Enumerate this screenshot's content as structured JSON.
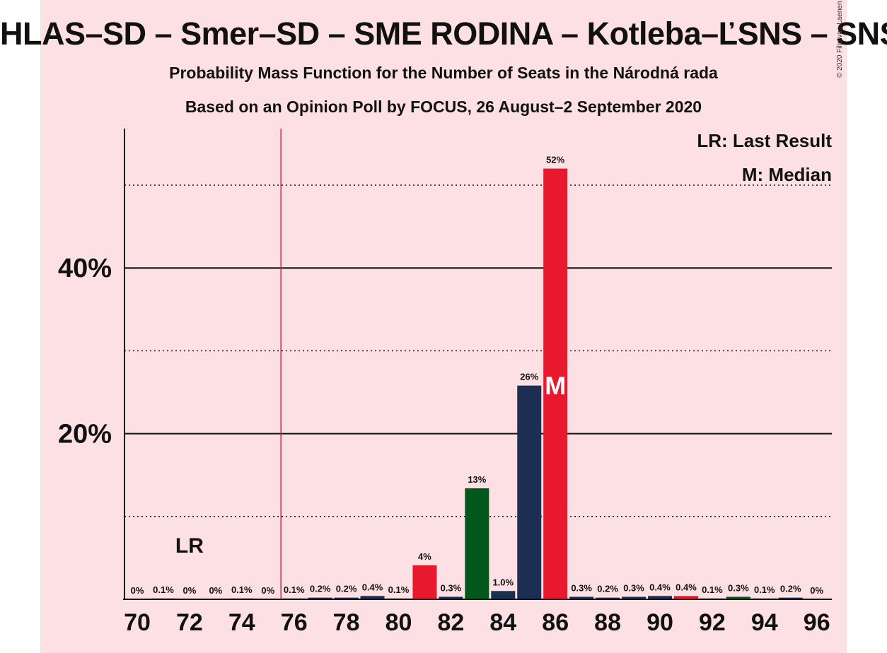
{
  "header": {
    "title": "HLAS–SD – Smer–SD – SME RODINA – Kotleba–ĽSNS – SNS",
    "subtitle": "Probability Mass Function for the Number of Seats in the Národná rada",
    "source": "Based on an Opinion Poll by FOCUS, 26 August–2 September 2020",
    "copyright": "© 2020 Filip van Laenen"
  },
  "legend": {
    "last_result": "LR: Last Result",
    "median": "M: Median"
  },
  "colors": {
    "background": "#fce0e3",
    "navy": "#1c2e52",
    "red": "#e8192f",
    "green": "#03571a",
    "majority_line": "#e8192f"
  },
  "chart_data": {
    "type": "bar",
    "x_min": 70,
    "x_max": 96,
    "x_ticks": [
      "70",
      "72",
      "74",
      "76",
      "78",
      "80",
      "82",
      "84",
      "86",
      "88",
      "90",
      "92",
      "94",
      "96"
    ],
    "y_range": [
      0,
      57
    ],
    "y_ticks": [
      {
        "value": 10,
        "label": "",
        "style": "dotted"
      },
      {
        "value": 20,
        "label": "20%",
        "style": "solid"
      },
      {
        "value": 30,
        "label": "",
        "style": "dotted"
      },
      {
        "value": 40,
        "label": "40%",
        "style": "solid"
      },
      {
        "value": 50,
        "label": "",
        "style": "dotted"
      }
    ],
    "majority_line_seats": 75.5,
    "last_result": {
      "seats": 72,
      "label": "LR"
    },
    "median": {
      "seats": 86,
      "label": "M"
    },
    "bars": [
      {
        "seats": 70,
        "value": 0,
        "label": "0%",
        "color": "navy"
      },
      {
        "seats": 71,
        "value": 0.1,
        "label": "0.1%",
        "color": "navy"
      },
      {
        "seats": 72,
        "value": 0,
        "label": "0%",
        "color": "navy"
      },
      {
        "seats": 73,
        "value": 0,
        "label": "0%",
        "color": "navy"
      },
      {
        "seats": 74,
        "value": 0.1,
        "label": "0.1%",
        "color": "navy"
      },
      {
        "seats": 75,
        "value": 0,
        "label": "0%",
        "color": "navy"
      },
      {
        "seats": 76,
        "value": 0.1,
        "label": "0.1%",
        "color": "navy"
      },
      {
        "seats": 77,
        "value": 0.2,
        "label": "0.2%",
        "color": "navy"
      },
      {
        "seats": 78,
        "value": 0.2,
        "label": "0.2%",
        "color": "navy"
      },
      {
        "seats": 79,
        "value": 0.4,
        "label": "0.4%",
        "color": "navy"
      },
      {
        "seats": 80,
        "value": 0.1,
        "label": "0.1%",
        "color": "navy"
      },
      {
        "seats": 81,
        "value": 4.1,
        "label": "4%",
        "color": "red"
      },
      {
        "seats": 82,
        "value": 0.3,
        "label": "0.3%",
        "color": "navy"
      },
      {
        "seats": 83,
        "value": 13.4,
        "label": "13%",
        "color": "green"
      },
      {
        "seats": 84,
        "value": 1.0,
        "label": "1.0%",
        "color": "navy"
      },
      {
        "seats": 85,
        "value": 25.8,
        "label": "26%",
        "color": "navy"
      },
      {
        "seats": 86,
        "value": 52.0,
        "label": "52%",
        "color": "red"
      },
      {
        "seats": 87,
        "value": 0.3,
        "label": "0.3%",
        "color": "navy"
      },
      {
        "seats": 88,
        "value": 0.2,
        "label": "0.2%",
        "color": "navy"
      },
      {
        "seats": 89,
        "value": 0.3,
        "label": "0.3%",
        "color": "navy"
      },
      {
        "seats": 90,
        "value": 0.4,
        "label": "0.4%",
        "color": "navy"
      },
      {
        "seats": 91,
        "value": 0.4,
        "label": "0.4%",
        "color": "red"
      },
      {
        "seats": 92,
        "value": 0.1,
        "label": "0.1%",
        "color": "navy"
      },
      {
        "seats": 93,
        "value": 0.3,
        "label": "0.3%",
        "color": "green"
      },
      {
        "seats": 94,
        "value": 0.1,
        "label": "0.1%",
        "color": "navy"
      },
      {
        "seats": 95,
        "value": 0.2,
        "label": "0.2%",
        "color": "navy"
      },
      {
        "seats": 96,
        "value": 0,
        "label": "0%",
        "color": "navy"
      }
    ]
  }
}
